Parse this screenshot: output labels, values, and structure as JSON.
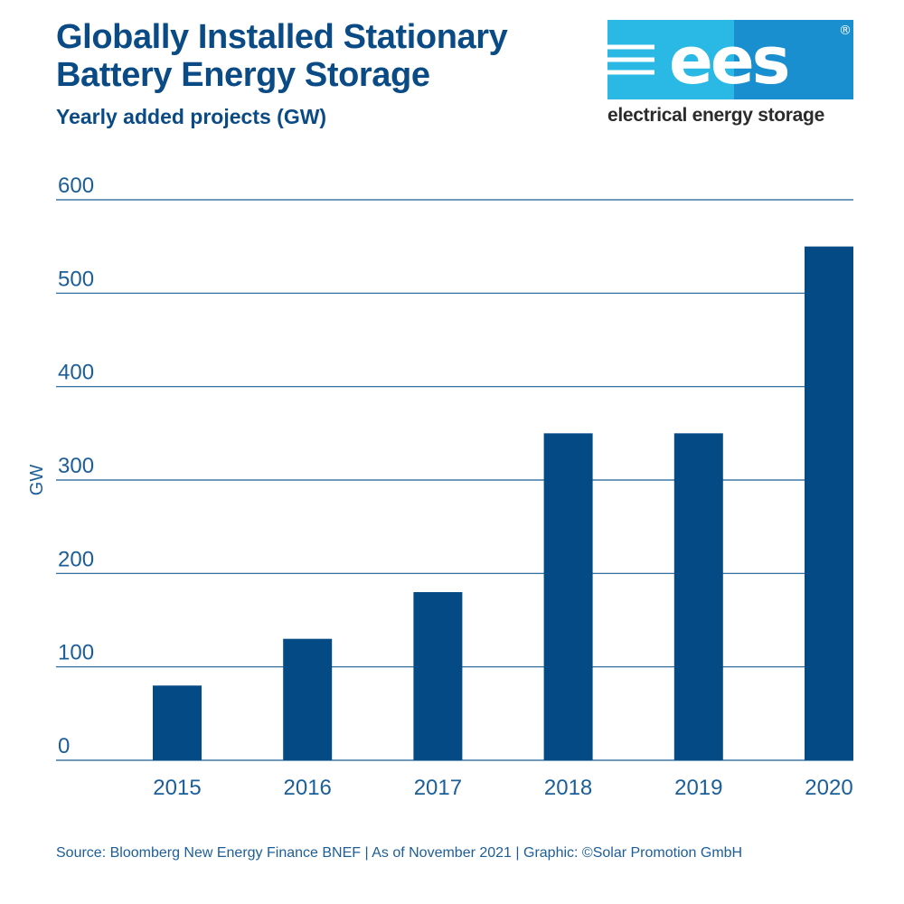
{
  "header": {
    "title_line1": "Globally Installed Stationary",
    "title_line2": "Battery Energy Storage",
    "subtitle": "Yearly added projects (GW)"
  },
  "logo": {
    "wordmark": "ees",
    "registered_mark": "®",
    "tagline": "electrical energy storage",
    "colors": {
      "light": "#29b9e4",
      "dark": "#1a8fcf"
    }
  },
  "footer": {
    "source": "Source: Bloomberg New Energy Finance BNEF | As of November 2021 | Graphic: ©Solar Promotion GmbH"
  },
  "colors": {
    "bar": "#044a85",
    "grid": "#1a5e93",
    "text": "#1c5e98",
    "title": "#0a4a85"
  },
  "chart_data": {
    "type": "bar",
    "title": "Globally Installed Stationary Battery Energy Storage",
    "subtitle": "Yearly added projects (GW)",
    "xlabel": "",
    "ylabel": "GW",
    "categories": [
      "2015",
      "2016",
      "2017",
      "2018",
      "2019",
      "2020"
    ],
    "values": [
      80,
      130,
      180,
      350,
      350,
      550
    ],
    "ylim": [
      0,
      600
    ],
    "yticks": [
      0,
      100,
      200,
      300,
      400,
      500,
      600
    ],
    "grid": true,
    "legend": "none"
  }
}
